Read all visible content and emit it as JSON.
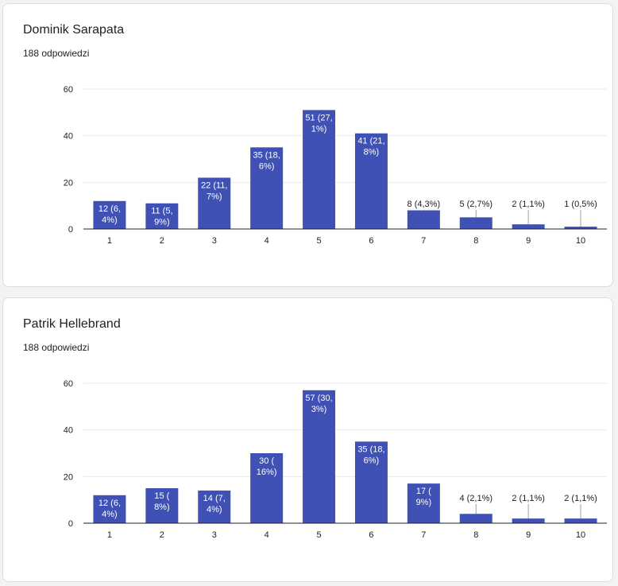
{
  "colors": {
    "bar": "#3f51b5",
    "grid": "#e8eaed",
    "axis": "#202124",
    "label_inside": "#ffffff",
    "label_outside": "#202124"
  },
  "cards": [
    {
      "title": "Dominik Sarapata",
      "subtitle": "188 odpowiedzi"
    },
    {
      "title": "Patrik Hellebrand",
      "subtitle": "188 odpowiedzi"
    }
  ],
  "chart_data": [
    {
      "type": "bar",
      "title": "Dominik Sarapata",
      "categories": [
        "1",
        "2",
        "3",
        "4",
        "5",
        "6",
        "7",
        "8",
        "9",
        "10"
      ],
      "values": [
        12,
        11,
        22,
        35,
        51,
        41,
        8,
        5,
        2,
        1
      ],
      "labels": [
        [
          "12 (6,",
          "4%)"
        ],
        [
          "11 (5,",
          "9%)"
        ],
        [
          "22 (11,",
          "7%)"
        ],
        [
          "35 (18,",
          "6%)"
        ],
        [
          "51 (27,",
          "1%)"
        ],
        [
          "41 (21,",
          "8%)"
        ],
        [
          "8 (4,3%)"
        ],
        [
          "5 (2,7%)"
        ],
        [
          "2 (1,1%)"
        ],
        [
          "1 (0,5%)"
        ]
      ],
      "label_inside": [
        true,
        true,
        true,
        true,
        true,
        true,
        false,
        false,
        false,
        false
      ],
      "yticks": [
        0,
        20,
        40,
        60
      ],
      "ylim": [
        0,
        60
      ],
      "grid": true
    },
    {
      "type": "bar",
      "title": "Patrik Hellebrand",
      "categories": [
        "1",
        "2",
        "3",
        "4",
        "5",
        "6",
        "7",
        "8",
        "9",
        "10"
      ],
      "values": [
        12,
        15,
        14,
        30,
        57,
        35,
        17,
        4,
        2,
        2
      ],
      "labels": [
        [
          "12 (6,",
          "4%)"
        ],
        [
          "15 (",
          "8%)"
        ],
        [
          "14 (7,",
          "4%)"
        ],
        [
          "30 (",
          "16%)"
        ],
        [
          "57 (30,",
          "3%)"
        ],
        [
          "35 (18,",
          "6%)"
        ],
        [
          "17 (",
          "9%)"
        ],
        [
          "4 (2,1%)"
        ],
        [
          "2 (1,1%)"
        ],
        [
          "2 (1,1%)"
        ]
      ],
      "label_inside": [
        true,
        true,
        true,
        true,
        true,
        true,
        true,
        false,
        false,
        false
      ],
      "yticks": [
        0,
        20,
        40,
        60
      ],
      "ylim": [
        0,
        60
      ],
      "grid": true
    }
  ]
}
